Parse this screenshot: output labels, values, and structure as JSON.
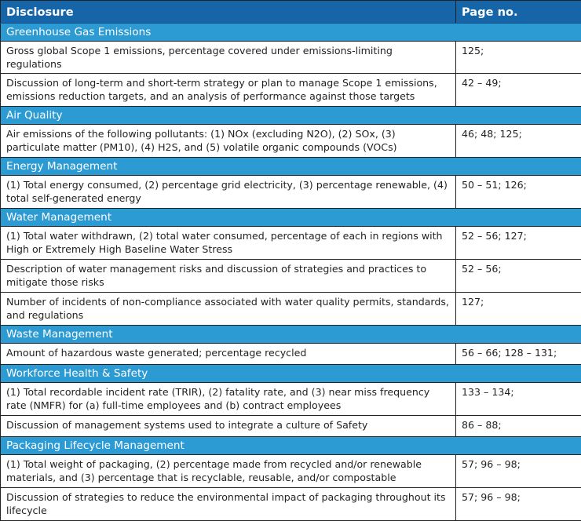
{
  "header": {
    "disclosure": "Disclosure",
    "page_no": "Page no."
  },
  "sections": {
    "ghg": {
      "title": "Greenhouse Gas Emissions",
      "rows": [
        {
          "text": "Gross global Scope 1 emissions, percentage covered under emissions-limiting regulations",
          "page": "125;"
        },
        {
          "text": "Discussion of long-term and short-term strategy or plan to manage Scope 1 emissions, emissions reduction targets, and an analysis of performance against those targets",
          "page": "42 – 49;"
        }
      ]
    },
    "air": {
      "title": "Air Quality",
      "rows": [
        {
          "text": "Air emissions of the following pollutants: (1) NOx (excluding N2O), (2) SOx, (3) particulate matter (PM10), (4) H2S, and (5) volatile organic compounds (VOCs)",
          "page": "46; 48; 125;"
        }
      ]
    },
    "energy": {
      "title": "Energy Management",
      "rows": [
        {
          "text": "(1) Total energy consumed, (2) percentage grid electricity, (3) percentage renewable, (4) total self-generated energy",
          "page": "50 – 51; 126;"
        }
      ]
    },
    "water": {
      "title": "Water Management",
      "rows": [
        {
          "text": "(1) Total water withdrawn, (2) total water consumed, percentage of each in regions with High or Extremely High Baseline Water Stress",
          "page": "52 – 56; 127;"
        },
        {
          "text": "Description of water management risks and discussion of strategies and practices to mitigate those risks",
          "page": "52 – 56;"
        },
        {
          "text": "Number of incidents of non-compliance associated with water quality permits, standards, and regulations",
          "page": "127;"
        }
      ]
    },
    "waste": {
      "title": "Waste Management",
      "rows": [
        {
          "text": "Amount of hazardous waste generated; percentage recycled",
          "page": "56 – 66; 128 – 131;"
        }
      ]
    },
    "safety": {
      "title": "Workforce Health & Safety",
      "rows": [
        {
          "text": "(1) Total recordable incident rate (TRIR), (2) fatality rate, and (3) near miss frequency rate (NMFR) for (a) full-time employees and (b) contract employees",
          "page": "133 – 134;"
        },
        {
          "text": "Discussion of management systems used to integrate a culture of Safety",
          "page": "86 – 88;"
        }
      ]
    },
    "packaging": {
      "title": "Packaging Lifecycle Management",
      "rows": [
        {
          "text": "(1) Total weight of packaging, (2) percentage made from recycled and/or renewable materials, and (3) percentage that is recyclable, reusable, and/or compostable",
          "page": "57; 96 – 98;"
        },
        {
          "text": "Discussion of strategies to reduce the environmental impact of packaging throughout its lifecycle",
          "page": "57; 96 – 98;"
        }
      ]
    }
  }
}
